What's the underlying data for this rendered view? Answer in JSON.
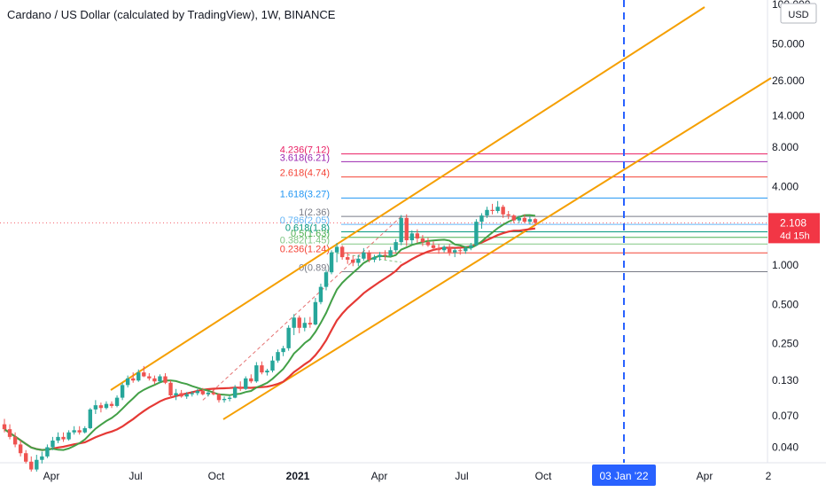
{
  "header": {
    "title": "Cardano / US Dollar (calculated by TradingView), 1W, BINANCE",
    "currency": "USD"
  },
  "colors": {
    "up": "#26a69a",
    "down": "#ef5350",
    "ma_fast": "#43a047",
    "ma_slow": "#e53935",
    "channel": "#f59f00",
    "forecast_line": "#2962ff",
    "projection_dash": "#e57373",
    "price_badge": "#f23645",
    "date_badge": "#2962ff"
  },
  "chart_data": {
    "type": "candlestick",
    "scale": "log",
    "x_ticks": [
      "Apr",
      "Jul",
      "Oct",
      "2021",
      "Apr",
      "Jul",
      "Oct",
      "Apr",
      "2"
    ],
    "y_ticks": [
      "100.000",
      "50.000",
      "26.000",
      "14.000",
      "8.000",
      "4.000",
      "1.000",
      "0.500",
      "0.250",
      "0.130",
      "0.070",
      "0.040"
    ],
    "last_price": {
      "label": "2.108",
      "countdown": "4d 15h",
      "value": 2.108
    },
    "forecast_date": "03 Jan '22",
    "fib_levels": [
      {
        "label": "4.236(7.12)",
        "value": 7.12,
        "color": "#e91e63"
      },
      {
        "label": "3.618(6.21)",
        "value": 6.21,
        "color": "#9c27b0"
      },
      {
        "label": "2.618(4.74)",
        "value": 4.74,
        "color": "#f44336"
      },
      {
        "label": "1.618(3.27)",
        "value": 3.27,
        "color": "#2196f3"
      },
      {
        "label": "1(2.36)",
        "value": 2.36,
        "color": "#787b86"
      },
      {
        "label": "0.786(2.05)",
        "value": 2.05,
        "color": "#64b5f6"
      },
      {
        "label": "0.618(1.8)",
        "value": 1.8,
        "color": "#089981"
      },
      {
        "label": "0.5(1.63)",
        "value": 1.63,
        "color": "#4caf50"
      },
      {
        "label": "0.382(1.45)",
        "value": 1.45,
        "color": "#81c784"
      },
      {
        "label": "0.236(1.24)",
        "value": 1.24,
        "color": "#f44336"
      },
      {
        "label": "0(0.89)",
        "value": 0.89,
        "color": "#787b86"
      }
    ],
    "candles": [
      {
        "o": 0.06,
        "h": 0.066,
        "l": 0.052,
        "c": 0.055
      },
      {
        "o": 0.055,
        "h": 0.06,
        "l": 0.046,
        "c": 0.048
      },
      {
        "o": 0.048,
        "h": 0.052,
        "l": 0.04,
        "c": 0.042
      },
      {
        "o": 0.042,
        "h": 0.045,
        "l": 0.034,
        "c": 0.036
      },
      {
        "o": 0.036,
        "h": 0.038,
        "l": 0.03,
        "c": 0.031
      },
      {
        "o": 0.031,
        "h": 0.034,
        "l": 0.026,
        "c": 0.027
      },
      {
        "o": 0.027,
        "h": 0.035,
        "l": 0.026,
        "c": 0.032
      },
      {
        "o": 0.032,
        "h": 0.037,
        "l": 0.03,
        "c": 0.034
      },
      {
        "o": 0.034,
        "h": 0.042,
        "l": 0.033,
        "c": 0.04
      },
      {
        "o": 0.04,
        "h": 0.048,
        "l": 0.038,
        "c": 0.045
      },
      {
        "o": 0.045,
        "h": 0.052,
        "l": 0.043,
        "c": 0.048
      },
      {
        "o": 0.048,
        "h": 0.052,
        "l": 0.044,
        "c": 0.046
      },
      {
        "o": 0.046,
        "h": 0.054,
        "l": 0.045,
        "c": 0.052
      },
      {
        "o": 0.052,
        "h": 0.058,
        "l": 0.05,
        "c": 0.054
      },
      {
        "o": 0.054,
        "h": 0.058,
        "l": 0.05,
        "c": 0.052
      },
      {
        "o": 0.052,
        "h": 0.058,
        "l": 0.051,
        "c": 0.056
      },
      {
        "o": 0.056,
        "h": 0.08,
        "l": 0.055,
        "c": 0.078
      },
      {
        "o": 0.078,
        "h": 0.092,
        "l": 0.072,
        "c": 0.084
      },
      {
        "o": 0.084,
        "h": 0.088,
        "l": 0.074,
        "c": 0.08
      },
      {
        "o": 0.08,
        "h": 0.09,
        "l": 0.078,
        "c": 0.086
      },
      {
        "o": 0.086,
        "h": 0.09,
        "l": 0.08,
        "c": 0.083
      },
      {
        "o": 0.083,
        "h": 0.1,
        "l": 0.081,
        "c": 0.096
      },
      {
        "o": 0.096,
        "h": 0.125,
        "l": 0.092,
        "c": 0.12
      },
      {
        "o": 0.12,
        "h": 0.142,
        "l": 0.115,
        "c": 0.135
      },
      {
        "o": 0.135,
        "h": 0.15,
        "l": 0.125,
        "c": 0.13
      },
      {
        "o": 0.13,
        "h": 0.158,
        "l": 0.127,
        "c": 0.15
      },
      {
        "o": 0.15,
        "h": 0.168,
        "l": 0.138,
        "c": 0.14
      },
      {
        "o": 0.14,
        "h": 0.148,
        "l": 0.13,
        "c": 0.135
      },
      {
        "o": 0.135,
        "h": 0.142,
        "l": 0.122,
        "c": 0.128
      },
      {
        "o": 0.128,
        "h": 0.145,
        "l": 0.125,
        "c": 0.14
      },
      {
        "o": 0.14,
        "h": 0.148,
        "l": 0.122,
        "c": 0.125
      },
      {
        "o": 0.125,
        "h": 0.13,
        "l": 0.095,
        "c": 0.1
      },
      {
        "o": 0.1,
        "h": 0.112,
        "l": 0.092,
        "c": 0.104
      },
      {
        "o": 0.104,
        "h": 0.11,
        "l": 0.096,
        "c": 0.098
      },
      {
        "o": 0.098,
        "h": 0.106,
        "l": 0.094,
        "c": 0.102
      },
      {
        "o": 0.102,
        "h": 0.108,
        "l": 0.098,
        "c": 0.104
      },
      {
        "o": 0.104,
        "h": 0.112,
        "l": 0.1,
        "c": 0.108
      },
      {
        "o": 0.108,
        "h": 0.114,
        "l": 0.1,
        "c": 0.102
      },
      {
        "o": 0.102,
        "h": 0.108,
        "l": 0.098,
        "c": 0.105
      },
      {
        "o": 0.105,
        "h": 0.11,
        "l": 0.1,
        "c": 0.102
      },
      {
        "o": 0.102,
        "h": 0.104,
        "l": 0.088,
        "c": 0.092
      },
      {
        "o": 0.092,
        "h": 0.098,
        "l": 0.088,
        "c": 0.094
      },
      {
        "o": 0.094,
        "h": 0.1,
        "l": 0.09,
        "c": 0.096
      },
      {
        "o": 0.096,
        "h": 0.12,
        "l": 0.095,
        "c": 0.115
      },
      {
        "o": 0.115,
        "h": 0.128,
        "l": 0.108,
        "c": 0.112
      },
      {
        "o": 0.112,
        "h": 0.14,
        "l": 0.11,
        "c": 0.135
      },
      {
        "o": 0.135,
        "h": 0.145,
        "l": 0.124,
        "c": 0.128
      },
      {
        "o": 0.128,
        "h": 0.18,
        "l": 0.125,
        "c": 0.17
      },
      {
        "o": 0.17,
        "h": 0.182,
        "l": 0.145,
        "c": 0.15
      },
      {
        "o": 0.15,
        "h": 0.16,
        "l": 0.142,
        "c": 0.155
      },
      {
        "o": 0.155,
        "h": 0.2,
        "l": 0.15,
        "c": 0.185
      },
      {
        "o": 0.185,
        "h": 0.225,
        "l": 0.178,
        "c": 0.215
      },
      {
        "o": 0.215,
        "h": 0.24,
        "l": 0.2,
        "c": 0.23
      },
      {
        "o": 0.23,
        "h": 0.345,
        "l": 0.22,
        "c": 0.33
      },
      {
        "o": 0.33,
        "h": 0.42,
        "l": 0.29,
        "c": 0.395
      },
      {
        "o": 0.395,
        "h": 0.41,
        "l": 0.3,
        "c": 0.33
      },
      {
        "o": 0.33,
        "h": 0.395,
        "l": 0.31,
        "c": 0.36
      },
      {
        "o": 0.36,
        "h": 0.4,
        "l": 0.33,
        "c": 0.35
      },
      {
        "o": 0.35,
        "h": 0.56,
        "l": 0.345,
        "c": 0.52
      },
      {
        "o": 0.52,
        "h": 0.72,
        "l": 0.5,
        "c": 0.68
      },
      {
        "o": 0.68,
        "h": 0.92,
        "l": 0.64,
        "c": 0.88
      },
      {
        "o": 0.88,
        "h": 1.3,
        "l": 0.85,
        "c": 1.25
      },
      {
        "o": 1.25,
        "h": 1.48,
        "l": 1.05,
        "c": 1.38
      },
      {
        "o": 1.38,
        "h": 1.42,
        "l": 1.1,
        "c": 1.15
      },
      {
        "o": 1.15,
        "h": 1.25,
        "l": 1.02,
        "c": 1.1
      },
      {
        "o": 1.1,
        "h": 1.18,
        "l": 0.98,
        "c": 1.04
      },
      {
        "o": 1.04,
        "h": 1.2,
        "l": 0.98,
        "c": 1.12
      },
      {
        "o": 1.12,
        "h": 1.35,
        "l": 1.08,
        "c": 1.25
      },
      {
        "o": 1.25,
        "h": 1.3,
        "l": 1.05,
        "c": 1.1
      },
      {
        "o": 1.1,
        "h": 1.2,
        "l": 1.05,
        "c": 1.15
      },
      {
        "o": 1.15,
        "h": 1.26,
        "l": 1.08,
        "c": 1.2
      },
      {
        "o": 1.2,
        "h": 1.3,
        "l": 1.1,
        "c": 1.18
      },
      {
        "o": 1.18,
        "h": 1.38,
        "l": 1.15,
        "c": 1.3
      },
      {
        "o": 1.3,
        "h": 1.58,
        "l": 1.25,
        "c": 1.5
      },
      {
        "o": 1.5,
        "h": 2.42,
        "l": 1.42,
        "c": 2.3
      },
      {
        "o": 2.3,
        "h": 2.45,
        "l": 1.4,
        "c": 1.55
      },
      {
        "o": 1.55,
        "h": 1.85,
        "l": 1.45,
        "c": 1.75
      },
      {
        "o": 1.75,
        "h": 1.88,
        "l": 1.48,
        "c": 1.6
      },
      {
        "o": 1.6,
        "h": 1.7,
        "l": 1.4,
        "c": 1.5
      },
      {
        "o": 1.5,
        "h": 1.62,
        "l": 1.38,
        "c": 1.42
      },
      {
        "o": 1.42,
        "h": 1.52,
        "l": 1.3,
        "c": 1.35
      },
      {
        "o": 1.35,
        "h": 1.45,
        "l": 1.22,
        "c": 1.3
      },
      {
        "o": 1.3,
        "h": 1.42,
        "l": 1.25,
        "c": 1.38
      },
      {
        "o": 1.38,
        "h": 1.45,
        "l": 1.18,
        "c": 1.25
      },
      {
        "o": 1.25,
        "h": 1.35,
        "l": 1.15,
        "c": 1.3
      },
      {
        "o": 1.3,
        "h": 1.38,
        "l": 1.2,
        "c": 1.28
      },
      {
        "o": 1.28,
        "h": 1.4,
        "l": 1.22,
        "c": 1.35
      },
      {
        "o": 1.35,
        "h": 1.48,
        "l": 1.3,
        "c": 1.42
      },
      {
        "o": 1.42,
        "h": 2.25,
        "l": 1.4,
        "c": 2.15
      },
      {
        "o": 2.15,
        "h": 2.5,
        "l": 1.9,
        "c": 2.4
      },
      {
        "o": 2.4,
        "h": 2.8,
        "l": 2.3,
        "c": 2.65
      },
      {
        "o": 2.65,
        "h": 2.95,
        "l": 2.45,
        "c": 2.6
      },
      {
        "o": 2.6,
        "h": 3.1,
        "l": 2.5,
        "c": 2.8
      },
      {
        "o": 2.8,
        "h": 2.9,
        "l": 2.3,
        "c": 2.45
      },
      {
        "o": 2.45,
        "h": 2.6,
        "l": 2.25,
        "c": 2.4
      },
      {
        "o": 2.4,
        "h": 2.45,
        "l": 2.1,
        "c": 2.2
      },
      {
        "o": 2.2,
        "h": 2.4,
        "l": 2.1,
        "c": 2.3
      },
      {
        "o": 2.3,
        "h": 2.45,
        "l": 2.1,
        "c": 2.15
      },
      {
        "o": 2.15,
        "h": 2.35,
        "l": 2.05,
        "c": 2.25
      },
      {
        "o": 2.25,
        "h": 2.3,
        "l": 2.0,
        "c": 2.108
      }
    ]
  }
}
